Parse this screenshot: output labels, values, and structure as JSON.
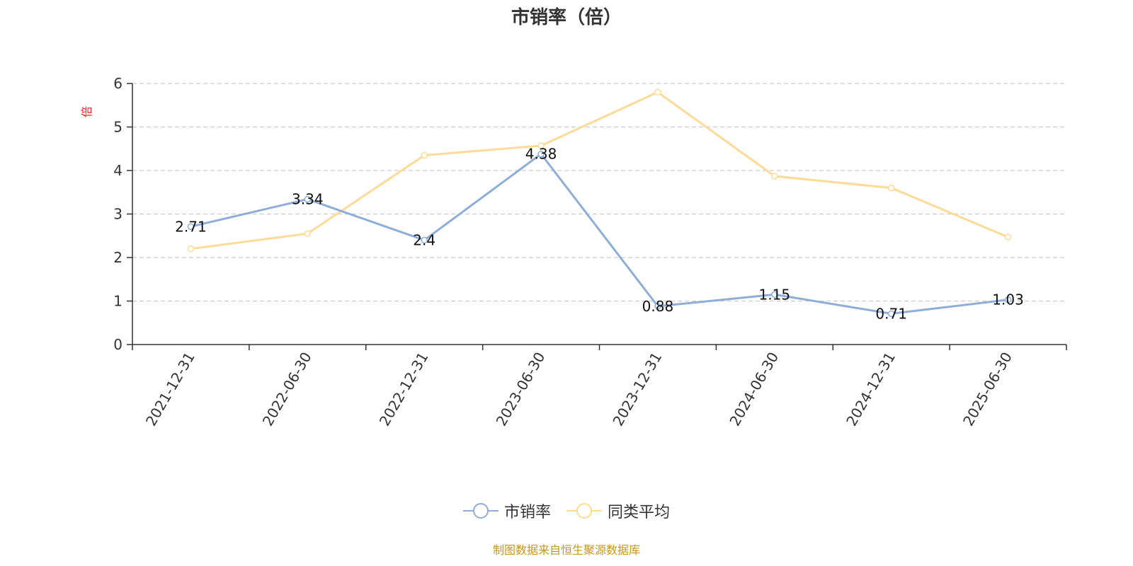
{
  "chart_data": {
    "type": "line",
    "title": "市销率（倍）",
    "ylabel": "倍",
    "categories": [
      "2021-12-31",
      "2022-06-30",
      "2022-12-31",
      "2023-06-30",
      "2023-12-31",
      "2024-06-30",
      "2024-12-31",
      "2025-06-30"
    ],
    "series": [
      {
        "name": "市销率",
        "values": [
          2.71,
          3.34,
          2.4,
          4.38,
          0.88,
          1.15,
          0.71,
          1.03
        ],
        "color": "#8eaed8",
        "data_labels": [
          "2.71",
          "3.34",
          "2.4",
          "4.38",
          "0.88",
          "1.15",
          "0.71",
          "1.03"
        ]
      },
      {
        "name": "同类平均",
        "values": [
          2.2,
          2.55,
          4.35,
          4.57,
          5.8,
          3.87,
          3.6,
          2.47
        ],
        "color": "#fddb97"
      }
    ],
    "ylim": [
      0,
      6
    ],
    "yticks": [
      "0",
      "1",
      "2",
      "3",
      "4",
      "5",
      "6"
    ],
    "grid": true,
    "legend_position": "bottom-center"
  },
  "source_note": "制图数据来自恒生聚源数据库",
  "colors": {
    "axis": "#333333",
    "grid": "#cccccc",
    "ylabel": "#e02020",
    "source": "#c8961e"
  }
}
